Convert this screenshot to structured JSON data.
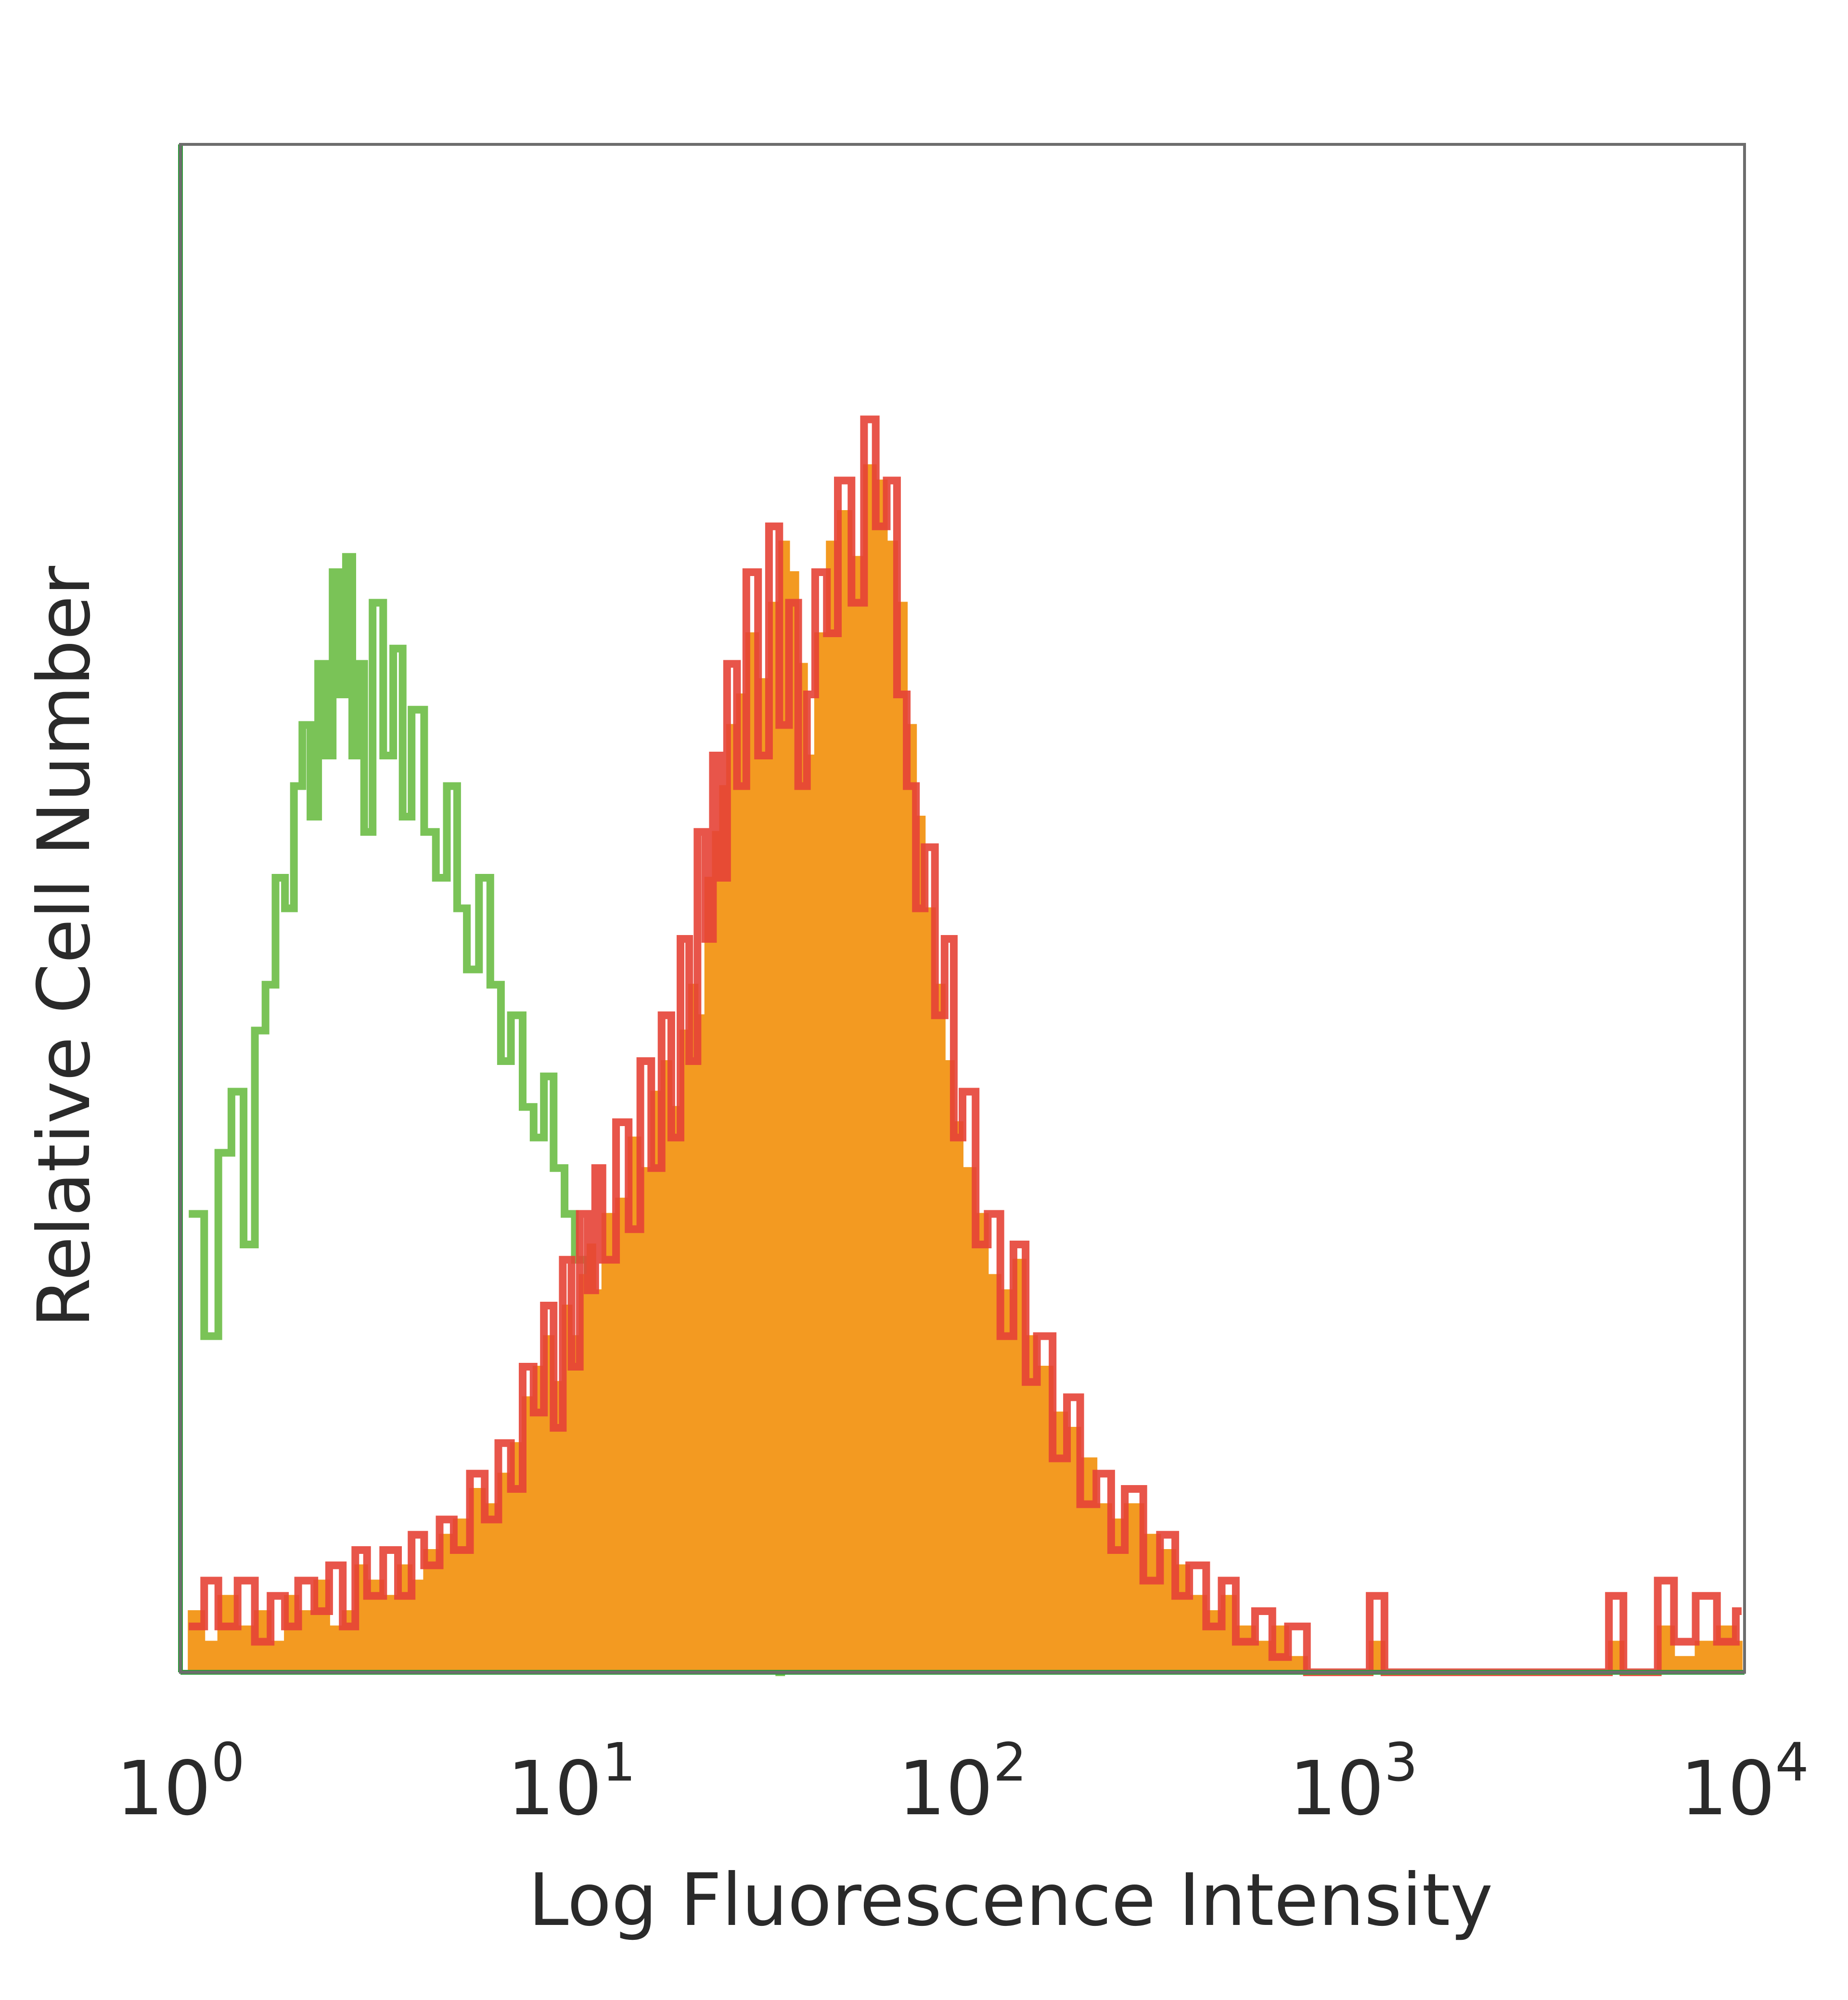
{
  "chart_data": {
    "type": "area",
    "title": "",
    "xlabel": "Log Fluorescence Intensity",
    "ylabel": "Relative Cell Number",
    "x_scale": "log",
    "xlim": [
      1,
      10000
    ],
    "ylim": [
      0,
      100
    ],
    "grid": false,
    "legend": "none",
    "x_ticks": [
      {
        "value": 1,
        "base": "10",
        "exp": "0"
      },
      {
        "value": 10,
        "base": "10",
        "exp": "1"
      },
      {
        "value": 100,
        "base": "10",
        "exp": "2"
      },
      {
        "value": 1000,
        "base": "10",
        "exp": "3"
      },
      {
        "value": 10000,
        "base": "10",
        "exp": "4"
      }
    ],
    "series": [
      {
        "color": "#6cbd45",
        "style": "line",
        "points": [
          [
            1.05,
            30
          ],
          [
            1.15,
            22
          ],
          [
            1.25,
            34
          ],
          [
            1.35,
            38
          ],
          [
            1.45,
            28
          ],
          [
            1.55,
            42
          ],
          [
            1.65,
            45
          ],
          [
            1.75,
            52
          ],
          [
            1.85,
            50
          ],
          [
            1.95,
            58
          ],
          [
            2.05,
            62
          ],
          [
            2.15,
            56
          ],
          [
            2.25,
            66
          ],
          [
            2.35,
            60
          ],
          [
            2.45,
            72
          ],
          [
            2.55,
            64
          ],
          [
            2.65,
            73
          ],
          [
            2.75,
            60
          ],
          [
            2.85,
            66
          ],
          [
            2.95,
            55
          ],
          [
            3.1,
            70
          ],
          [
            3.3,
            60
          ],
          [
            3.5,
            67
          ],
          [
            3.7,
            56
          ],
          [
            3.9,
            63
          ],
          [
            4.2,
            55
          ],
          [
            4.5,
            52
          ],
          [
            4.8,
            58
          ],
          [
            5.1,
            50
          ],
          [
            5.4,
            46
          ],
          [
            5.8,
            52
          ],
          [
            6.2,
            45
          ],
          [
            6.6,
            40
          ],
          [
            7.0,
            43
          ],
          [
            7.5,
            37
          ],
          [
            8.0,
            35
          ],
          [
            8.5,
            39
          ],
          [
            9.0,
            33
          ],
          [
            9.6,
            30
          ],
          [
            10.2,
            27
          ],
          [
            11.0,
            24
          ],
          [
            12.0,
            22
          ],
          [
            13.0,
            17
          ],
          [
            14.0,
            15
          ],
          [
            15.0,
            12
          ],
          [
            16.5,
            11
          ],
          [
            18.0,
            8
          ],
          [
            20.0,
            5
          ],
          [
            22.0,
            6
          ],
          [
            24.0,
            4
          ],
          [
            26.0,
            5
          ],
          [
            28.0,
            4
          ],
          [
            30.0,
            3
          ],
          [
            32.0,
            4
          ],
          [
            34.0,
            0
          ]
        ]
      },
      {
        "color": "#f39a21",
        "style": "filled",
        "points": [
          [
            1.05,
            4
          ],
          [
            1.15,
            2
          ],
          [
            1.25,
            5
          ],
          [
            1.4,
            3
          ],
          [
            1.55,
            4
          ],
          [
            1.7,
            2
          ],
          [
            1.85,
            5
          ],
          [
            2.0,
            4
          ],
          [
            2.2,
            6
          ],
          [
            2.4,
            3
          ],
          [
            2.6,
            4
          ],
          [
            2.8,
            7
          ],
          [
            3.0,
            6
          ],
          [
            3.3,
            5
          ],
          [
            3.6,
            7
          ],
          [
            3.9,
            6
          ],
          [
            4.2,
            8
          ],
          [
            4.6,
            9
          ],
          [
            5.0,
            10
          ],
          [
            5.5,
            12
          ],
          [
            6.0,
            11
          ],
          [
            6.5,
            13
          ],
          [
            7.0,
            15
          ],
          [
            7.5,
            18
          ],
          [
            8.0,
            20
          ],
          [
            8.5,
            22
          ],
          [
            9.0,
            19
          ],
          [
            9.5,
            24
          ],
          [
            10.0,
            22
          ],
          [
            10.5,
            26
          ],
          [
            11.0,
            28
          ],
          [
            11.5,
            25
          ],
          [
            12.0,
            30
          ],
          [
            13.0,
            31
          ],
          [
            14.0,
            35
          ],
          [
            15.0,
            33
          ],
          [
            16.0,
            38
          ],
          [
            17.0,
            40
          ],
          [
            18.0,
            37
          ],
          [
            19.0,
            42
          ],
          [
            20.0,
            45
          ],
          [
            21.0,
            43
          ],
          [
            22.0,
            52
          ],
          [
            23.0,
            55
          ],
          [
            24.0,
            58
          ],
          [
            25.0,
            62
          ],
          [
            26.5,
            64
          ],
          [
            28.0,
            68
          ],
          [
            30.0,
            65
          ],
          [
            32.0,
            70
          ],
          [
            34.0,
            74
          ],
          [
            36.0,
            72
          ],
          [
            38.0,
            66
          ],
          [
            40.0,
            60
          ],
          [
            42.0,
            68
          ],
          [
            45.0,
            74
          ],
          [
            48.0,
            76
          ],
          [
            52.0,
            73
          ],
          [
            56.0,
            79
          ],
          [
            60.0,
            78
          ],
          [
            64.0,
            74
          ],
          [
            68.0,
            70
          ],
          [
            72.0,
            62
          ],
          [
            76.0,
            56
          ],
          [
            80.0,
            50
          ],
          [
            85.0,
            45
          ],
          [
            90.0,
            40
          ],
          [
            95.0,
            36
          ],
          [
            100.0,
            33
          ],
          [
            108.0,
            30
          ],
          [
            116.0,
            26
          ],
          [
            125.0,
            25
          ],
          [
            135.0,
            27
          ],
          [
            145.0,
            22
          ],
          [
            155.0,
            20
          ],
          [
            170.0,
            17
          ],
          [
            185.0,
            16
          ],
          [
            200.0,
            14
          ],
          [
            220.0,
            11
          ],
          [
            240.0,
            10
          ],
          [
            260.0,
            11
          ],
          [
            290.0,
            9
          ],
          [
            320.0,
            8
          ],
          [
            350.0,
            7
          ],
          [
            380.0,
            5
          ],
          [
            420.0,
            4
          ],
          [
            460.0,
            5
          ],
          [
            500.0,
            3
          ],
          [
            560.0,
            2
          ],
          [
            620.0,
            3
          ],
          [
            680.0,
            1
          ],
          [
            760.0,
            0
          ],
          [
            1100.0,
            2
          ],
          [
            1200.0,
            0
          ],
          [
            4500.0,
            2
          ],
          [
            4900.0,
            0
          ],
          [
            6000.0,
            3
          ],
          [
            6600.0,
            1
          ],
          [
            7500.0,
            2
          ],
          [
            8500.0,
            3
          ],
          [
            9500.0,
            2
          ]
        ]
      },
      {
        "color": "#e54336",
        "style": "line",
        "points": [
          [
            1.05,
            3
          ],
          [
            1.15,
            6
          ],
          [
            1.25,
            3
          ],
          [
            1.4,
            6
          ],
          [
            1.55,
            2
          ],
          [
            1.7,
            5
          ],
          [
            1.85,
            3
          ],
          [
            2.0,
            6
          ],
          [
            2.2,
            4
          ],
          [
            2.4,
            7
          ],
          [
            2.6,
            3
          ],
          [
            2.8,
            8
          ],
          [
            3.0,
            5
          ],
          [
            3.3,
            8
          ],
          [
            3.6,
            5
          ],
          [
            3.9,
            9
          ],
          [
            4.2,
            7
          ],
          [
            4.6,
            10
          ],
          [
            5.0,
            8
          ],
          [
            5.5,
            13
          ],
          [
            6.0,
            10
          ],
          [
            6.5,
            15
          ],
          [
            7.0,
            12
          ],
          [
            7.5,
            20
          ],
          [
            8.0,
            17
          ],
          [
            8.5,
            24
          ],
          [
            9.0,
            16
          ],
          [
            9.5,
            27
          ],
          [
            10.0,
            20
          ],
          [
            10.5,
            30
          ],
          [
            11.0,
            25
          ],
          [
            11.5,
            33
          ],
          [
            12.0,
            27
          ],
          [
            13.0,
            36
          ],
          [
            14.0,
            29
          ],
          [
            15.0,
            40
          ],
          [
            16.0,
            33
          ],
          [
            17.0,
            43
          ],
          [
            18.0,
            35
          ],
          [
            19.0,
            48
          ],
          [
            20.0,
            40
          ],
          [
            21.0,
            55
          ],
          [
            22.0,
            48
          ],
          [
            23.0,
            60
          ],
          [
            24.0,
            52
          ],
          [
            25.0,
            66
          ],
          [
            26.5,
            58
          ],
          [
            28.0,
            72
          ],
          [
            30.0,
            60
          ],
          [
            32.0,
            75
          ],
          [
            34.0,
            62
          ],
          [
            36.0,
            70
          ],
          [
            38.0,
            58
          ],
          [
            40.0,
            64
          ],
          [
            42.0,
            72
          ],
          [
            45.0,
            68
          ],
          [
            48.0,
            78
          ],
          [
            52.0,
            70
          ],
          [
            56.0,
            82
          ],
          [
            60.0,
            75
          ],
          [
            64.0,
            78
          ],
          [
            68.0,
            64
          ],
          [
            72.0,
            58
          ],
          [
            76.0,
            50
          ],
          [
            80.0,
            54
          ],
          [
            85.0,
            43
          ],
          [
            90.0,
            48
          ],
          [
            95.0,
            35
          ],
          [
            100.0,
            38
          ],
          [
            108.0,
            28
          ],
          [
            116.0,
            30
          ],
          [
            125.0,
            22
          ],
          [
            135.0,
            28
          ],
          [
            145.0,
            19
          ],
          [
            155.0,
            22
          ],
          [
            170.0,
            14
          ],
          [
            185.0,
            18
          ],
          [
            200.0,
            11
          ],
          [
            220.0,
            13
          ],
          [
            240.0,
            8
          ],
          [
            260.0,
            12
          ],
          [
            290.0,
            6
          ],
          [
            320.0,
            9
          ],
          [
            350.0,
            5
          ],
          [
            380.0,
            7
          ],
          [
            420.0,
            3
          ],
          [
            460.0,
            6
          ],
          [
            500.0,
            2
          ],
          [
            560.0,
            4
          ],
          [
            620.0,
            1
          ],
          [
            680.0,
            3
          ],
          [
            760.0,
            0
          ],
          [
            1100.0,
            5
          ],
          [
            1200.0,
            0
          ],
          [
            4500.0,
            5
          ],
          [
            4900.0,
            0
          ],
          [
            6000.0,
            6
          ],
          [
            6600.0,
            2
          ],
          [
            7500.0,
            5
          ],
          [
            8500.0,
            2
          ],
          [
            9500.0,
            4
          ]
        ]
      }
    ]
  }
}
